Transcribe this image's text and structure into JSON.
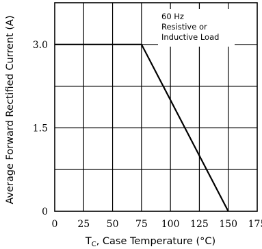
{
  "chart_data": {
    "type": "line",
    "xlabel_prefix": "T",
    "xlabel_subscript": "C",
    "xlabel_rest": ", Case Temperature (°C)",
    "ylabel": "Average Forward Rectified Current (A)",
    "xlim": [
      0,
      175
    ],
    "ylim": [
      0,
      3.75
    ],
    "x_ticks": [
      "0",
      "25",
      "50",
      "75",
      "100",
      "125",
      "150",
      "175"
    ],
    "y_ticks": [
      "0",
      "1.5",
      "3.0"
    ],
    "annotation": [
      "60 Hz",
      "Resistive or",
      "Inductive Load"
    ],
    "grid": true,
    "series": [
      {
        "x": [
          0,
          75,
          150
        ],
        "y": [
          3.0,
          3.0,
          0
        ]
      }
    ]
  }
}
